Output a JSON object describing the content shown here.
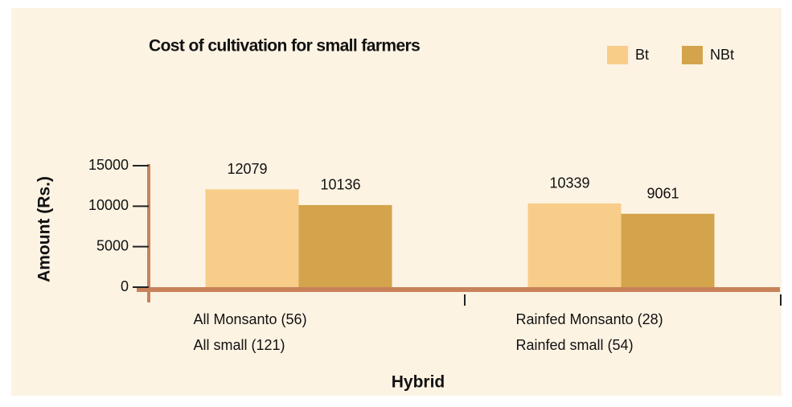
{
  "chart_data": {
    "type": "bar",
    "title": "Cost of cultivation for small farmers",
    "y_label": "Amount (Rs.)",
    "x_label": "Hybrid",
    "categories": [
      [
        "All Monsanto (56)",
        "All small (121)"
      ],
      [
        "Rainfed Monsanto (28)",
        "Rainfed small (54)"
      ]
    ],
    "series": [
      {
        "name": "Bt",
        "color": "#f7cd89",
        "values": [
          12079,
          10339
        ]
      },
      {
        "name": "NBt",
        "color": "#d4a44c",
        "values": [
          10136,
          9061
        ]
      }
    ],
    "ylim": [
      0,
      15000
    ],
    "yticks": [
      0,
      5000,
      10000,
      15000
    ],
    "legend": "top-right"
  }
}
